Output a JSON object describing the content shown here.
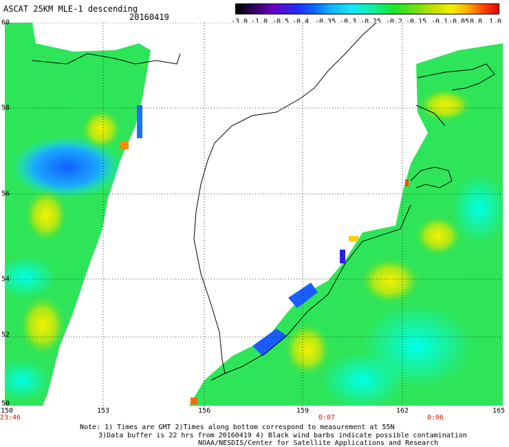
{
  "header": {
    "title": "ASCAT 25KM MLE-1 descending",
    "date": "20160419"
  },
  "colorbar": {
    "ticks": [
      "-3.0",
      "-1.0",
      "-0.5",
      "-0.4",
      "-0.35",
      "-0.3",
      "-0.25",
      "-0.2",
      "-0.15",
      "-0.1",
      "-0.05",
      "0.0",
      "1.0"
    ]
  },
  "axes": {
    "lat_labels": [
      "60",
      "58",
      "56",
      "54",
      "52",
      "50"
    ],
    "lon_labels": [
      "150",
      "153",
      "156",
      "159",
      "162",
      "165"
    ],
    "time_labels": [
      "23:46",
      "0:07",
      "0:06"
    ]
  },
  "notes": {
    "line1": "Note: 1) Times are GMT 2)Times along bottom correspond to measurement at 55N",
    "line2": "3)Data buffer is 22 hrs from 20160419 4) Black wind barbs indicate possible contamination",
    "line3": "NOAA/NESDIS/Center for Satellite Applications and Research"
  }
}
